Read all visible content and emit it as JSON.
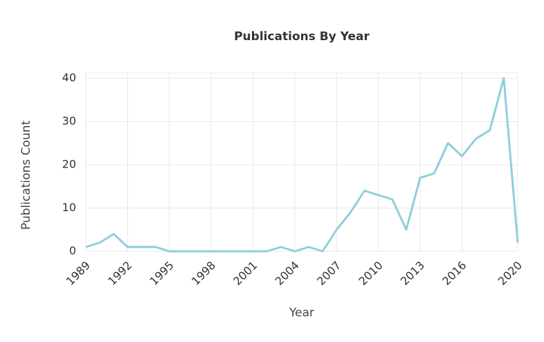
{
  "chart_data": {
    "type": "line",
    "title": "Publications By Year",
    "xlabel": "Year",
    "ylabel": "Publications Count",
    "x": [
      1989,
      1990,
      1991,
      1992,
      1993,
      1994,
      1995,
      1996,
      1997,
      1998,
      1999,
      2000,
      2001,
      2002,
      2003,
      2004,
      2005,
      2006,
      2007,
      2008,
      2009,
      2010,
      2011,
      2012,
      2013,
      2014,
      2015,
      2016,
      2017,
      2018,
      2019,
      2020
    ],
    "series": [
      {
        "name": "Publications",
        "color": "#8ecfdb",
        "values": [
          1,
          2,
          4,
          1,
          1,
          1,
          0,
          0,
          0,
          0,
          0,
          0,
          0,
          0,
          1,
          0,
          1,
          0,
          5,
          9,
          14,
          13,
          12,
          5,
          17,
          18,
          25,
          22,
          26,
          28,
          40,
          2
        ]
      }
    ],
    "xlim": [
      1989,
      2020
    ],
    "xticks": [
      1989,
      1992,
      1995,
      1998,
      2001,
      2004,
      2007,
      2010,
      2013,
      2016,
      2020
    ],
    "ylim": [
      0,
      40
    ],
    "yticks": [
      0,
      10,
      20,
      30,
      40
    ],
    "grid": true
  }
}
